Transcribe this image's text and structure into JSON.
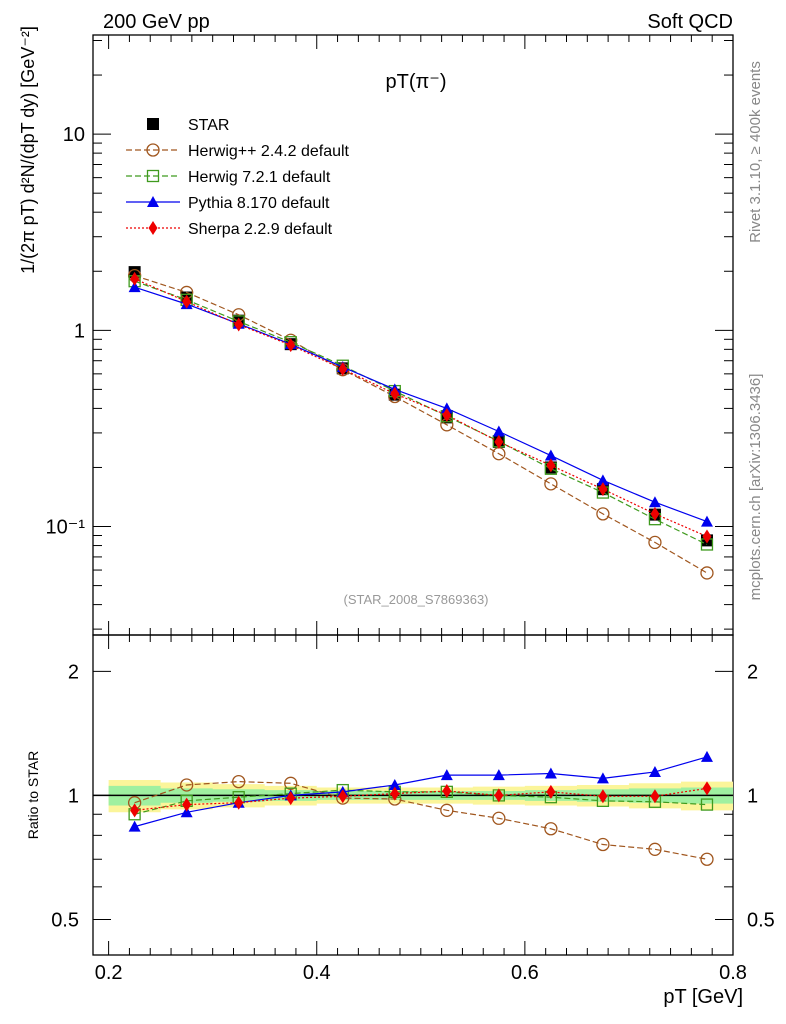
{
  "header": {
    "left": "200 GeV pp",
    "right": "Soft QCD"
  },
  "side_labels": {
    "rivet": "Rivet 3.1.10, ≥ 400k events",
    "mcplots": "mcplots.cern.ch [arXiv:1306.3436]"
  },
  "colors": {
    "STAR": "#000000",
    "Herwig++ 2.4.2 default": "#a0561e",
    "Herwig 7.2.1 default": "#3f9a1e",
    "Pythia 8.170 default": "#0000ee",
    "Sherpa 2.2.9 default": "#ee0000",
    "band_inner": "#9ff0a0",
    "band_outer": "#fbf59a"
  },
  "chart_data": [
    {
      "type": "line",
      "title": "pT(π⁻)",
      "ylabel": "1/(2π pT) d²N/(dpT dy) [GeV⁻²]",
      "yscale": "log",
      "ylim": [
        0.028,
        32
      ],
      "xlim": [
        0.185,
        0.8
      ],
      "yticks": [
        {
          "v": 0.1,
          "label": "10⁻¹"
        },
        {
          "v": 1,
          "label": "1"
        },
        {
          "v": 10,
          "label": "10"
        }
      ],
      "annotation": "(STAR_2008_S7869363)",
      "legend": "top-left",
      "x": [
        0.225,
        0.275,
        0.325,
        0.375,
        0.425,
        0.475,
        0.525,
        0.575,
        0.625,
        0.675,
        0.725,
        0.775
      ],
      "series": [
        {
          "name": "STAR",
          "marker": "square-filled",
          "line": "none",
          "values": [
            1.98,
            1.47,
            1.12,
            0.85,
            0.64,
            0.47,
            0.36,
            0.27,
            0.2,
            0.155,
            0.115,
            0.085
          ]
        },
        {
          "name": "Herwig++ 2.4.2 default",
          "marker": "circle-open",
          "line": "dashed",
          "values": [
            1.9,
            1.56,
            1.2,
            0.89,
            0.63,
            0.46,
            0.33,
            0.235,
            0.165,
            0.116,
            0.083,
            0.058
          ]
        },
        {
          "name": "Herwig 7.2.1 default",
          "marker": "square-open",
          "line": "dashed",
          "values": [
            1.78,
            1.43,
            1.11,
            0.87,
            0.66,
            0.49,
            0.365,
            0.272,
            0.197,
            0.149,
            0.109,
            0.081
          ]
        },
        {
          "name": "Pythia 8.170 default",
          "marker": "triangle-filled",
          "line": "solid",
          "values": [
            1.66,
            1.36,
            1.08,
            0.85,
            0.65,
            0.5,
            0.4,
            0.305,
            0.23,
            0.172,
            0.133,
            0.106
          ]
        },
        {
          "name": "Sherpa 2.2.9 default",
          "marker": "diamond-filled",
          "line": "dotted",
          "values": [
            1.83,
            1.4,
            1.07,
            0.84,
            0.635,
            0.475,
            0.37,
            0.27,
            0.205,
            0.155,
            0.116,
            0.089
          ]
        }
      ]
    },
    {
      "type": "line",
      "ylabel": "Ratio to STAR",
      "xlabel": "pT [GeV]",
      "yscale": "log",
      "ylim": [
        0.41,
        2.45
      ],
      "xlim": [
        0.185,
        0.8
      ],
      "yticks": [
        {
          "v": 0.5,
          "label": "0.5"
        },
        {
          "v": 1,
          "label": "1"
        },
        {
          "v": 2,
          "label": "2"
        }
      ],
      "xticks": [
        {
          "v": 0.2,
          "label": "0.2"
        },
        {
          "v": 0.4,
          "label": "0.4"
        },
        {
          "v": 0.6,
          "label": "0.6"
        },
        {
          "v": 0.8,
          "label": "0.8"
        }
      ],
      "x": [
        0.225,
        0.275,
        0.325,
        0.375,
        0.425,
        0.475,
        0.525,
        0.575,
        0.625,
        0.675,
        0.725,
        0.775
      ],
      "band_inner": [
        0.055,
        0.04,
        0.035,
        0.03,
        0.025,
        0.025,
        0.025,
        0.025,
        0.03,
        0.035,
        0.04,
        0.045
      ],
      "band_outer": [
        0.09,
        0.075,
        0.065,
        0.055,
        0.045,
        0.045,
        0.045,
        0.05,
        0.055,
        0.06,
        0.07,
        0.08
      ],
      "series": [
        {
          "name": "Herwig++ 2.4.2 default",
          "values": [
            0.96,
            1.06,
            1.08,
            1.07,
            0.985,
            0.98,
            0.92,
            0.88,
            0.83,
            0.76,
            0.74,
            0.7
          ]
        },
        {
          "name": "Herwig 7.2.1 default",
          "values": [
            0.9,
            0.97,
            0.99,
            1.01,
            1.03,
            1.02,
            1.02,
            1.0,
            0.99,
            0.97,
            0.965,
            0.95
          ]
        },
        {
          "name": "Pythia 8.170 default",
          "values": [
            0.84,
            0.91,
            0.96,
            1.0,
            1.02,
            1.06,
            1.12,
            1.12,
            1.13,
            1.1,
            1.14,
            1.24
          ]
        },
        {
          "name": "Sherpa 2.2.9 default",
          "values": [
            0.92,
            0.95,
            0.96,
            0.985,
            0.995,
            1.01,
            1.025,
            1.0,
            1.02,
            0.995,
            0.995,
            1.04
          ]
        }
      ]
    }
  ]
}
